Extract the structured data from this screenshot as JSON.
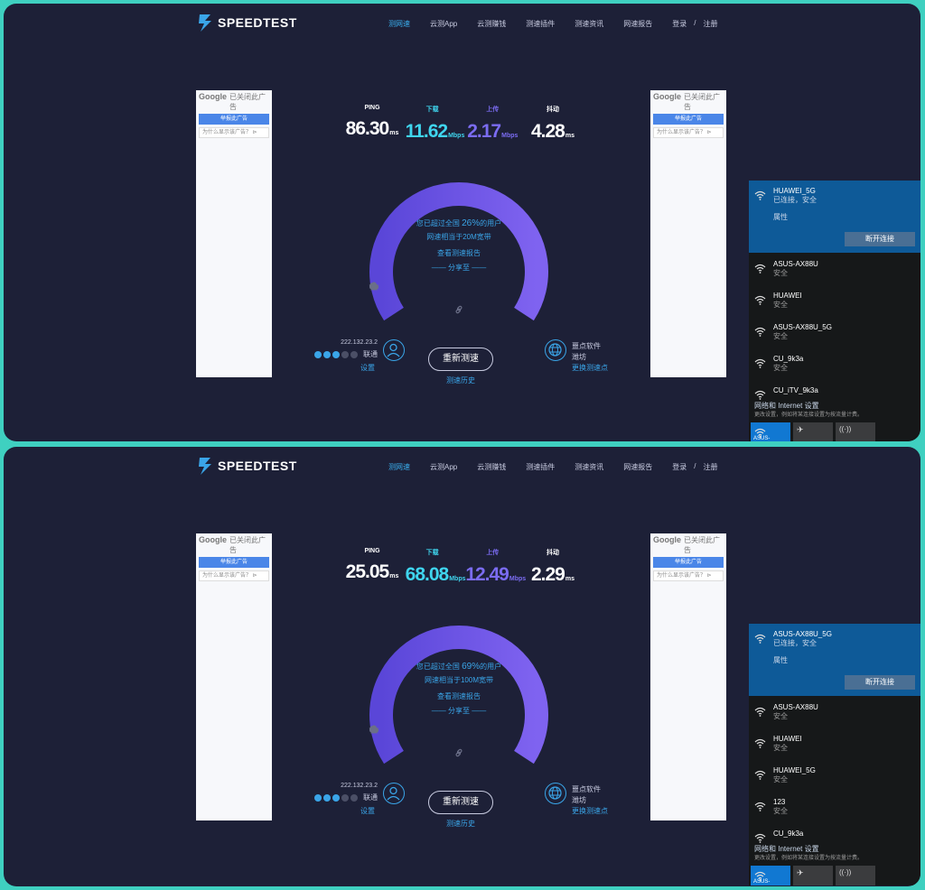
{
  "header": {
    "logo_text": "SPEEDTEST",
    "nav": [
      "测网速",
      "云测App",
      "云测赚钱",
      "测速插件",
      "测速资讯",
      "网速报告"
    ],
    "login": "登录",
    "sep": "/",
    "register": "注册"
  },
  "ad": {
    "google": "Google",
    "closed": "已关闭此广告",
    "report": "举报此广告",
    "why": "为什么显示该广告？ ⊳"
  },
  "stat_labels": {
    "ping": "PING",
    "download": "下载",
    "upload": "上传",
    "jitter": "抖动"
  },
  "units": {
    "ms": "ms",
    "mbps": "Mbps"
  },
  "common": {
    "beat_prefix": "您已超过全国",
    "beat_suffix": "的用户",
    "equiv_prefix": "网速相当于",
    "equiv_suffix": "宽带",
    "view_report": "查看测速报告",
    "share": "—— 分享至 ——",
    "retest": "重新测速",
    "history": "测速历史",
    "settings": "设置",
    "change_server": "更换测速点",
    "wifi_props": "属性",
    "wifi_disconnect": "断开连接",
    "wifi_net_settings": "网络和 Internet 设置",
    "wifi_net_settings_sub": "更改设置，例如将某连接设置为按流量计费。",
    "tile_wifi": "ASUS-"
  },
  "colors": {
    "bg": "#1d2037",
    "accent": "#3aa5e8",
    "cyan": "#3fd5ee",
    "purple": "#7b6cf2",
    "frame": "#3fd0c0"
  },
  "panels": [
    {
      "ping": "86.30",
      "download": "11.62",
      "upload": "2.17",
      "jitter": "4.28",
      "beat_pct": "26%",
      "equiv": "20M",
      "ip": "222.132.23.2",
      "isp": "联通",
      "server_line1": "噩点软件",
      "server_line2": "潍坊",
      "wifi": {
        "connected": {
          "name": "HUAWEI_5G",
          "status": "已连接，安全"
        },
        "list": [
          {
            "name": "ASUS-AX88U",
            "sub": "安全"
          },
          {
            "name": "HUAWEI",
            "sub": "安全"
          },
          {
            "name": "ASUS-AX88U_5G",
            "sub": "安全"
          },
          {
            "name": "CU_9k3a",
            "sub": "安全"
          },
          {
            "name": "CU_iTV_9k3a",
            "sub": ""
          }
        ]
      }
    },
    {
      "ping": "25.05",
      "download": "68.08",
      "upload": "12.49",
      "jitter": "2.29",
      "beat_pct": "69%",
      "equiv": "100M",
      "ip": "222.132.23.2",
      "isp": "联通",
      "server_line1": "噩点软件",
      "server_line2": "潍坊",
      "wifi": {
        "connected": {
          "name": "ASUS-AX88U_5G",
          "status": "已连接，安全"
        },
        "list": [
          {
            "name": "ASUS-AX88U",
            "sub": "安全"
          },
          {
            "name": "HUAWEI",
            "sub": "安全"
          },
          {
            "name": "HUAWEI_5G",
            "sub": "安全"
          },
          {
            "name": "123",
            "sub": "安全"
          },
          {
            "name": "CU_9k3a",
            "sub": ""
          }
        ]
      }
    }
  ]
}
